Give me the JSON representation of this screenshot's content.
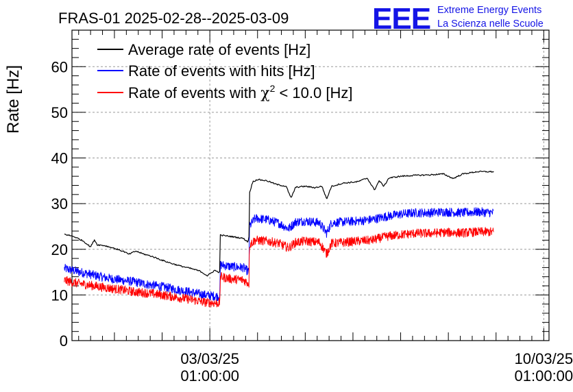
{
  "chart_data": {
    "type": "line",
    "title": "FRAS-01 2025-02-28--2025-03-09",
    "ylabel": "Rate [Hz]",
    "xlabel": "",
    "ylim": [
      0,
      68
    ],
    "yticks": [
      0,
      10,
      20,
      30,
      40,
      50,
      60
    ],
    "ytick_labels": [
      "0",
      "10",
      "20",
      "30",
      "40",
      "50",
      "60"
    ],
    "xlim_days": [
      -2.89,
      7.11
    ],
    "xticks": [
      {
        "day": 0,
        "date_label": "03/03/25",
        "time_label": "01:00:00"
      },
      {
        "day": 7,
        "date_label": "10/03/25",
        "time_label": "01:00:00"
      }
    ],
    "grid": true,
    "legend_position": "top-left",
    "legend": [
      {
        "label": "Average rate of events [Hz]",
        "color": "#000000"
      },
      {
        "label": "Rate of events with hits [Hz]",
        "color": "#0000ff"
      },
      {
        "label_prefix": "Rate of events with ",
        "label_symbol": "χ",
        "label_sup": "2",
        "label_suffix": " < 10.0 [Hz]",
        "color": "#ff0000"
      }
    ],
    "series": [
      {
        "name": "Average rate of events [Hz]",
        "color": "#000000",
        "noise": 0.15,
        "points": [
          [
            -3.05,
            23.3
          ],
          [
            -2.85,
            22.8
          ],
          [
            -2.65,
            21.8
          ],
          [
            -2.5,
            20.5
          ],
          [
            -2.42,
            22.1
          ],
          [
            -2.36,
            21.0
          ],
          [
            -2.2,
            20.8
          ],
          [
            -2.0,
            20.2
          ],
          [
            -1.8,
            19.5
          ],
          [
            -1.7,
            18.9
          ],
          [
            -1.55,
            19.6
          ],
          [
            -1.4,
            19.0
          ],
          [
            -1.2,
            18.4
          ],
          [
            -1.0,
            17.6
          ],
          [
            -0.8,
            16.9
          ],
          [
            -0.6,
            16.3
          ],
          [
            -0.4,
            15.8
          ],
          [
            -0.2,
            15.2
          ],
          [
            -0.05,
            14.2
          ],
          [
            0.1,
            15.4
          ],
          [
            0.18,
            15.0
          ],
          [
            0.21,
            15.1
          ],
          [
            0.22,
            23.1
          ],
          [
            0.45,
            22.8
          ],
          [
            0.7,
            22.4
          ],
          [
            0.8,
            21.6
          ],
          [
            0.82,
            22.8
          ],
          [
            0.83,
            32.3
          ],
          [
            0.9,
            34.8
          ],
          [
            1.0,
            35.3
          ],
          [
            1.2,
            35.0
          ],
          [
            1.4,
            34.2
          ],
          [
            1.6,
            33.8
          ],
          [
            1.7,
            31.2
          ],
          [
            1.8,
            33.6
          ],
          [
            2.0,
            33.8
          ],
          [
            2.2,
            33.5
          ],
          [
            2.35,
            33.8
          ],
          [
            2.45,
            31.0
          ],
          [
            2.55,
            33.8
          ],
          [
            2.8,
            34.5
          ],
          [
            3.1,
            34.8
          ],
          [
            3.3,
            35.6
          ],
          [
            3.45,
            33.0
          ],
          [
            3.55,
            35.0
          ],
          [
            3.65,
            33.8
          ],
          [
            3.75,
            35.6
          ],
          [
            4.0,
            36.0
          ],
          [
            4.3,
            36.2
          ],
          [
            4.6,
            36.3
          ],
          [
            4.9,
            36.5
          ],
          [
            5.1,
            35.5
          ],
          [
            5.3,
            36.5
          ],
          [
            5.6,
            37.0
          ],
          [
            5.95,
            37.0
          ]
        ]
      },
      {
        "name": "Rate of events with hits [Hz]",
        "color": "#0000ff",
        "noise": 1.0,
        "points": [
          [
            -3.05,
            15.8
          ],
          [
            -2.8,
            15.2
          ],
          [
            -2.5,
            14.5
          ],
          [
            -2.2,
            13.8
          ],
          [
            -1.9,
            13.3
          ],
          [
            -1.6,
            12.9
          ],
          [
            -1.3,
            12.3
          ],
          [
            -1.0,
            11.8
          ],
          [
            -0.7,
            11.2
          ],
          [
            -0.4,
            10.6
          ],
          [
            -0.1,
            10.0
          ],
          [
            0.15,
            9.7
          ],
          [
            0.21,
            9.8
          ],
          [
            0.22,
            16.6
          ],
          [
            0.45,
            16.2
          ],
          [
            0.7,
            16.0
          ],
          [
            0.82,
            15.0
          ],
          [
            0.83,
            25.0
          ],
          [
            0.95,
            26.8
          ],
          [
            1.2,
            26.5
          ],
          [
            1.45,
            25.7
          ],
          [
            1.65,
            24.5
          ],
          [
            1.8,
            26.0
          ],
          [
            2.0,
            26.2
          ],
          [
            2.3,
            25.8
          ],
          [
            2.45,
            23.5
          ],
          [
            2.55,
            25.8
          ],
          [
            2.8,
            26.0
          ],
          [
            3.1,
            26.2
          ],
          [
            3.4,
            26.5
          ],
          [
            3.7,
            27.2
          ],
          [
            4.0,
            27.7
          ],
          [
            4.3,
            28.0
          ],
          [
            4.6,
            28.0
          ],
          [
            4.9,
            28.2
          ],
          [
            5.3,
            28.0
          ],
          [
            5.6,
            28.2
          ],
          [
            5.95,
            28.0
          ]
        ]
      },
      {
        "name": "Rate of events with χ2 < 10.0 [Hz]",
        "color": "#ff0000",
        "noise": 1.0,
        "points": [
          [
            -3.05,
            13.2
          ],
          [
            -2.8,
            12.6
          ],
          [
            -2.5,
            12.1
          ],
          [
            -2.2,
            11.6
          ],
          [
            -1.9,
            11.2
          ],
          [
            -1.6,
            10.7
          ],
          [
            -1.3,
            10.4
          ],
          [
            -1.0,
            10.0
          ],
          [
            -0.7,
            9.5
          ],
          [
            -0.4,
            9.0
          ],
          [
            -0.1,
            8.4
          ],
          [
            0.15,
            8.2
          ],
          [
            0.21,
            8.3
          ],
          [
            0.22,
            14.0
          ],
          [
            0.45,
            13.5
          ],
          [
            0.7,
            13.3
          ],
          [
            0.82,
            12.5
          ],
          [
            0.83,
            21.0
          ],
          [
            0.95,
            22.0
          ],
          [
            1.2,
            21.8
          ],
          [
            1.45,
            21.3
          ],
          [
            1.65,
            20.3
          ],
          [
            1.8,
            21.5
          ],
          [
            2.0,
            21.8
          ],
          [
            2.3,
            21.5
          ],
          [
            2.45,
            19.0
          ],
          [
            2.55,
            21.3
          ],
          [
            2.8,
            21.5
          ],
          [
            3.1,
            21.8
          ],
          [
            3.4,
            22.0
          ],
          [
            3.7,
            22.8
          ],
          [
            4.0,
            23.2
          ],
          [
            4.3,
            23.5
          ],
          [
            4.6,
            23.5
          ],
          [
            4.9,
            23.7
          ],
          [
            5.3,
            23.6
          ],
          [
            5.6,
            23.8
          ],
          [
            5.95,
            23.8
          ]
        ]
      }
    ]
  },
  "logo": {
    "mark": "EEE",
    "line1": "Extreme Energy Events",
    "line2": "La Scienza nelle Scuole",
    "color": "#1414e6"
  }
}
